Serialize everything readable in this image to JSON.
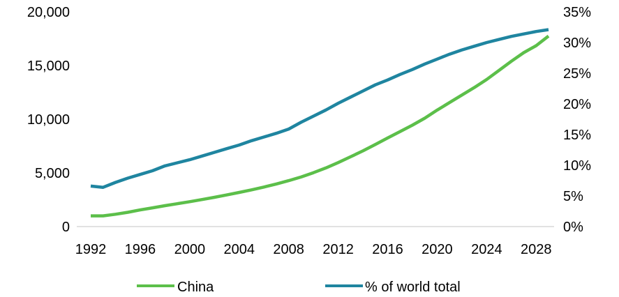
{
  "colors": {
    "china": "#5cbf4a",
    "share": "#1f85a0",
    "axis": "#d9d9d9",
    "text": "#000000"
  },
  "chart_data": {
    "type": "line",
    "x": [
      1992,
      1993,
      1994,
      1995,
      1996,
      1997,
      1998,
      1999,
      2000,
      2001,
      2002,
      2003,
      2004,
      2005,
      2006,
      2007,
      2008,
      2009,
      2010,
      2011,
      2012,
      2013,
      2014,
      2015,
      2016,
      2017,
      2018,
      2019,
      2020,
      2021,
      2022,
      2023,
      2024,
      2025,
      2026,
      2027,
      2028,
      2029
    ],
    "x_ticks": [
      1992,
      1996,
      2000,
      2004,
      2008,
      2012,
      2016,
      2020,
      2024,
      2028
    ],
    "x_tick_labels": [
      "1992",
      "1996",
      "2000",
      "2004",
      "2008",
      "2012",
      "2016",
      "2020",
      "2024",
      "2028"
    ],
    "y_left": {
      "ylim": [
        0,
        20000
      ],
      "ticks": [
        0,
        5000,
        10000,
        15000,
        20000
      ],
      "tick_labels": [
        "0",
        "5,000",
        "10,000",
        "15,000",
        "20,000"
      ]
    },
    "y_right": {
      "ylim": [
        0,
        35
      ],
      "ticks": [
        0,
        5,
        10,
        15,
        20,
        25,
        30,
        35
      ],
      "tick_labels": [
        "0%",
        "5%",
        "10%",
        "15%",
        "20%",
        "25%",
        "30%",
        "35%"
      ]
    },
    "series": [
      {
        "name": "China",
        "axis": "left",
        "values": [
          1000,
          1000,
          1150,
          1330,
          1550,
          1750,
          1950,
          2130,
          2320,
          2520,
          2730,
          2950,
          3180,
          3420,
          3680,
          3970,
          4280,
          4620,
          5020,
          5460,
          5960,
          6500,
          7050,
          7650,
          8250,
          8850,
          9450,
          10100,
          10850,
          11550,
          12250,
          12950,
          13700,
          14550,
          15400,
          16200,
          16850,
          17750
        ]
      },
      {
        "name": "% of world total",
        "axis": "right",
        "values": [
          6.6,
          6.4,
          7.2,
          7.9,
          8.5,
          9.1,
          9.9,
          10.4,
          10.9,
          11.5,
          12.1,
          12.7,
          13.3,
          14,
          14.6,
          15.2,
          15.9,
          17,
          18,
          19,
          20.1,
          21.1,
          22.1,
          23.1,
          23.9,
          24.8,
          25.6,
          26.5,
          27.3,
          28.1,
          28.8,
          29.4,
          30,
          30.5,
          31,
          31.4,
          31.8,
          32.1
        ]
      }
    ],
    "legend": {
      "placement": "bottom",
      "entries": [
        "China",
        "% of world total"
      ]
    }
  }
}
